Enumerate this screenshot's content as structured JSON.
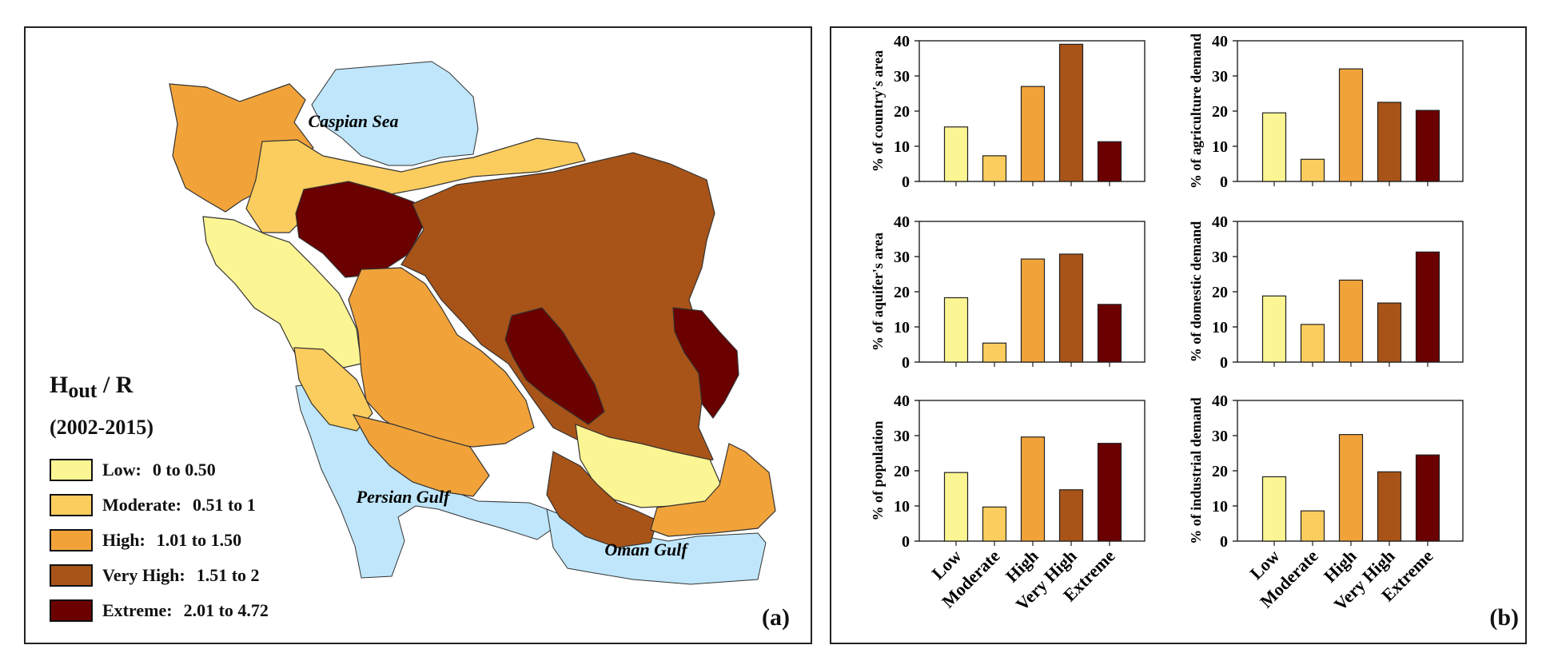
{
  "panel_a": {
    "letter": "(a)",
    "legend": {
      "title_main": "H",
      "title_sub": "out",
      "title_rest": " / R",
      "period": "(2002-2015)",
      "classes": [
        {
          "label": "Low:",
          "range": "0 to 0.50",
          "color": "#fcf593"
        },
        {
          "label": "Moderate:",
          "range": "0.51 to 1",
          "color": "#fbcd5e"
        },
        {
          "label": "High:",
          "range": "1.01 to 1.50",
          "color": "#f1a33a"
        },
        {
          "label": "Very High:",
          "range": "1.51 to 2",
          "color": "#a85418"
        },
        {
          "label": "Extreme:",
          "range": "2.01 to 4.72",
          "color": "#6b0000"
        }
      ]
    },
    "water_labels": {
      "caspian": "Caspian Sea",
      "persian": "Persian Gulf",
      "oman": "Oman Gulf"
    },
    "water_color": "#bfe6fb"
  },
  "panel_b": {
    "letter": "(b)"
  },
  "chart_data": [
    {
      "type": "bar",
      "ylabel": "% of country's area",
      "ylim": [
        0,
        40
      ],
      "yticks": [
        0,
        10,
        20,
        30,
        40
      ],
      "categories": [
        "Low",
        "Moderate",
        "High",
        "Very High",
        "Extreme"
      ],
      "values": [
        15.5,
        7.3,
        27,
        39,
        11.3
      ]
    },
    {
      "type": "bar",
      "ylabel": "% of agriculture demand",
      "ylim": [
        0,
        40
      ],
      "yticks": [
        0,
        10,
        20,
        30,
        40
      ],
      "categories": [
        "Low",
        "Moderate",
        "High",
        "Very High",
        "Extreme"
      ],
      "values": [
        19.5,
        6.3,
        32,
        22.5,
        20.2
      ]
    },
    {
      "type": "bar",
      "ylabel": "% of aquifer's area",
      "ylim": [
        0,
        40
      ],
      "yticks": [
        0,
        10,
        20,
        30,
        40
      ],
      "categories": [
        "Low",
        "Moderate",
        "High",
        "Very High",
        "Extreme"
      ],
      "values": [
        18.3,
        5.4,
        29.3,
        30.7,
        16.4
      ]
    },
    {
      "type": "bar",
      "ylabel": "% of domestic demand",
      "ylim": [
        0,
        40
      ],
      "yticks": [
        0,
        10,
        20,
        30,
        40
      ],
      "categories": [
        "Low",
        "Moderate",
        "High",
        "Very High",
        "Extreme"
      ],
      "values": [
        18.8,
        10.7,
        23.3,
        16.8,
        31.3
      ]
    },
    {
      "type": "bar",
      "ylabel": "% of population",
      "ylim": [
        0,
        40
      ],
      "yticks": [
        0,
        10,
        20,
        30,
        40
      ],
      "categories": [
        "Low",
        "Moderate",
        "High",
        "Very High",
        "Extreme"
      ],
      "values": [
        19.5,
        9.7,
        29.6,
        14.6,
        27.8
      ]
    },
    {
      "type": "bar",
      "ylabel": "% of industrial demand",
      "ylim": [
        0,
        40
      ],
      "yticks": [
        0,
        10,
        20,
        30,
        40
      ],
      "categories": [
        "Low",
        "Moderate",
        "High",
        "Very High",
        "Extreme"
      ],
      "values": [
        18.3,
        8.6,
        30.3,
        19.7,
        24.5
      ]
    }
  ],
  "bar_colors": [
    "#fcf593",
    "#fbcd5e",
    "#f1a33a",
    "#a85418",
    "#6b0000"
  ]
}
